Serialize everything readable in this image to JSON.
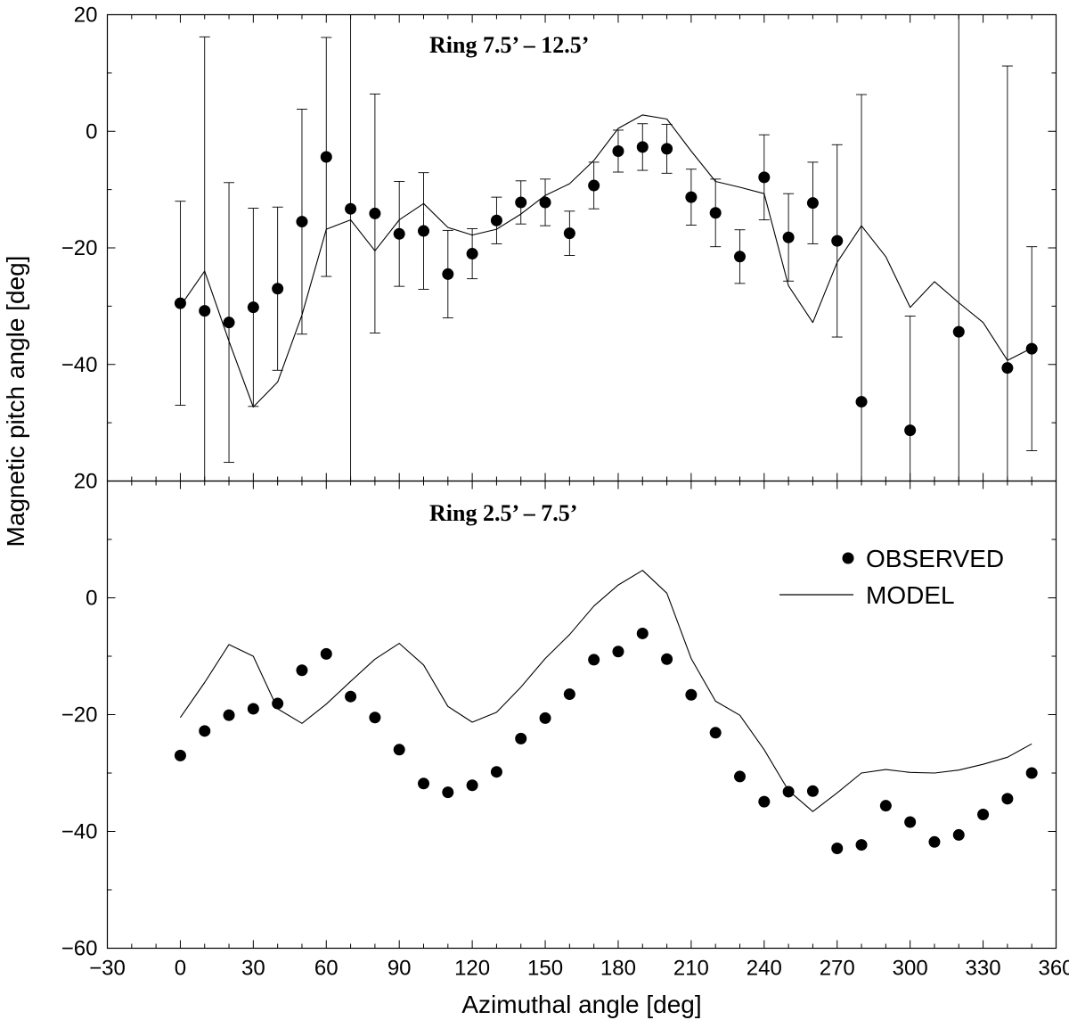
{
  "chart_data": {
    "type": "scatter",
    "xlabel": "Azimuthal angle [deg]",
    "ylabel": "Magnetic pitch angle [deg]",
    "xlim": [
      -30,
      360
    ],
    "x_ticks": [
      -30,
      0,
      30,
      60,
      90,
      120,
      150,
      180,
      210,
      240,
      270,
      300,
      330,
      360
    ],
    "x_tick_labels": [
      "−30",
      "0",
      "30",
      "60",
      "90",
      "120",
      "150",
      "180",
      "210",
      "240",
      "270",
      "300",
      "330",
      "360"
    ],
    "legend": {
      "position": "top-right of lower panel",
      "observed_label": "OBSERVED",
      "model_label": "MODEL"
    },
    "panels": [
      {
        "title": "Ring 7.5’ – 12.5’",
        "ylim": [
          -60,
          20
        ],
        "y_ticks": [
          -60,
          -40,
          -20,
          0,
          20
        ],
        "y_tick_labels": [
          "",
          "−40",
          "−20",
          "0",
          "20"
        ],
        "observed": {
          "x": [
            0,
            10,
            20,
            30,
            40,
            50,
            60,
            70,
            80,
            90,
            100,
            110,
            120,
            130,
            140,
            150,
            160,
            170,
            180,
            190,
            200,
            210,
            220,
            230,
            240,
            250,
            260,
            270,
            280,
            300,
            320,
            340,
            350
          ],
          "y": [
            -29.5,
            -30.8,
            -32.8,
            -30.2,
            -27,
            -15.5,
            -4.4,
            -13.3,
            -14.1,
            -17.6,
            -17.1,
            -24.5,
            -21,
            -15.3,
            -12.2,
            -12.2,
            -17.5,
            -9.3,
            -3.4,
            -2.7,
            -3,
            -11.3,
            -14,
            -21.5,
            -7.9,
            -18.2,
            -12.3,
            -18.8,
            -46.4,
            -51.3,
            -34.4,
            -40.6,
            -37.3
          ],
          "err": [
            17.5,
            47,
            24,
            17,
            14,
            19.3,
            20.5,
            90,
            20.5,
            9,
            10,
            7.5,
            4.3,
            4,
            3.7,
            4,
            3.8,
            4,
            3.6,
            4,
            4.2,
            4.8,
            5.8,
            4.6,
            7.3,
            7.5,
            7,
            16.5,
            52.7,
            19.6,
            90,
            51.8,
            17.5
          ]
        },
        "model": {
          "x": [
            0,
            10,
            20,
            30,
            40,
            50,
            60,
            70,
            80,
            90,
            100,
            110,
            120,
            130,
            140,
            150,
            160,
            170,
            180,
            190,
            200,
            210,
            220,
            230,
            240,
            250,
            260,
            270,
            280,
            290,
            300,
            310,
            320,
            330,
            340,
            350
          ],
          "y": [
            -30,
            -24,
            -36,
            -47.3,
            -43,
            -31.5,
            -16.8,
            -15.2,
            -20.5,
            -15.2,
            -12.4,
            -16.5,
            -17.8,
            -16.8,
            -14.2,
            -11,
            -9,
            -5,
            0.5,
            2.8,
            2.1,
            -3.4,
            -8.6,
            -9.6,
            -10.7,
            -26.5,
            -32.8,
            -22.5,
            -16.2,
            -21.5,
            -30.2,
            -25.8,
            -29.4,
            -32.8,
            -39.3,
            -37.2
          ]
        }
      },
      {
        "title": "Ring 2.5’ – 7.5’",
        "ylim": [
          -60,
          20
        ],
        "y_ticks": [
          -60,
          -40,
          -20,
          0,
          20
        ],
        "y_tick_labels": [
          "−60",
          "−40",
          "−20",
          "0",
          "20"
        ],
        "observed": {
          "x": [
            0,
            10,
            20,
            30,
            40,
            50,
            60,
            70,
            80,
            90,
            100,
            110,
            120,
            130,
            140,
            150,
            160,
            170,
            180,
            190,
            200,
            210,
            220,
            230,
            240,
            250,
            260,
            270,
            280,
            290,
            300,
            310,
            320,
            330,
            340,
            350
          ],
          "y": [
            -27,
            -22.8,
            -20.1,
            -19,
            -18.1,
            -12.4,
            -9.6,
            -16.9,
            -20.5,
            -26,
            -31.8,
            -33.3,
            -32.1,
            -29.8,
            -24.1,
            -20.6,
            -16.5,
            -10.6,
            -9.2,
            -6.1,
            -10.5,
            -16.6,
            -23.1,
            -30.6,
            -34.9,
            -33.2,
            -33.1,
            -42.9,
            -42.3,
            -35.6,
            -38.4,
            -41.8,
            -40.6,
            -37.1,
            -34.4,
            -30
          ]
        },
        "model": {
          "x": [
            0,
            10,
            20,
            30,
            40,
            50,
            60,
            70,
            80,
            90,
            100,
            110,
            120,
            130,
            140,
            150,
            160,
            170,
            180,
            190,
            200,
            210,
            220,
            230,
            240,
            250,
            260,
            270,
            280,
            290,
            300,
            310,
            320,
            330,
            340,
            350
          ],
          "y": [
            -20.5,
            -14.5,
            -8,
            -10,
            -19,
            -21.5,
            -18.2,
            -14.3,
            -10.5,
            -7.8,
            -11.5,
            -18.6,
            -21.3,
            -19.6,
            -15.3,
            -10.4,
            -6.3,
            -1.4,
            2.2,
            4.7,
            0.8,
            -10.4,
            -17.7,
            -20.1,
            -26,
            -33,
            -36.6,
            -33.4,
            -30,
            -29.4,
            -29.9,
            -30,
            -29.5,
            -28.5,
            -27.3,
            -25
          ]
        }
      }
    ]
  }
}
